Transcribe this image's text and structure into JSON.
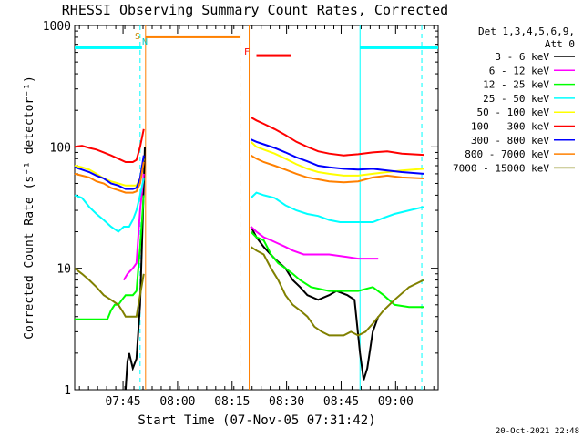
{
  "chart_data": {
    "type": "line",
    "title": "RHESSI Observing Summary Count Rates, Corrected",
    "xlabel": "Start Time (07-Nov-05 07:31:42)",
    "ylabel": "Corrected Count Rate (s⁻¹ detector⁻¹)",
    "yscale": "log",
    "ylim": [
      1,
      1000
    ],
    "xlim": [
      0,
      100
    ],
    "x_ticks": [
      {
        "x": 13.3,
        "label": "07:45"
      },
      {
        "x": 28.3,
        "label": "08:00"
      },
      {
        "x": 43.3,
        "label": "08:15"
      },
      {
        "x": 58.3,
        "label": "08:30"
      },
      {
        "x": 73.3,
        "label": "08:45"
      },
      {
        "x": 88.3,
        "label": "09:00"
      }
    ],
    "y_ticks": [
      {
        "y": 1,
        "label": "1"
      },
      {
        "y": 10,
        "label": "10"
      },
      {
        "y": 100,
        "label": "100"
      },
      {
        "y": 1000,
        "label": "1000"
      }
    ],
    "legend_header": [
      "Det 1,3,4,5,6,9,",
      "Att 0"
    ],
    "legend_position": "top-right outside plot",
    "footer_date": "20-Oct-2021 22:48",
    "annotations": [
      {
        "label": "S",
        "color": "#cc8800"
      },
      {
        "label": "N",
        "color": "#00cccc"
      },
      {
        "label": "F",
        "color": "#ff0000"
      }
    ],
    "bars": [
      {
        "name": "night",
        "color": "#00ffff",
        "segments": [
          [
            0,
            18.5
          ],
          [
            78.5,
            100
          ]
        ],
        "y": 650
      },
      {
        "name": "saa",
        "color": "#ff8000",
        "segments": [
          [
            19.5,
            45.5
          ]
        ],
        "y": 800
      },
      {
        "name": "flare",
        "color": "#ff0000",
        "segments": [
          [
            50,
            59.5
          ]
        ],
        "y": 560
      }
    ],
    "vlines": [
      {
        "x": 18.0,
        "color": "#00ffff",
        "style": "dashed"
      },
      {
        "x": 19.5,
        "color": "#ff8000",
        "style": "solid"
      },
      {
        "x": 45.5,
        "color": "#ff8000",
        "style": "dashed"
      },
      {
        "x": 48.0,
        "color": "#ff8000",
        "style": "solid"
      },
      {
        "x": 78.5,
        "color": "#00ffff",
        "style": "solid"
      },
      {
        "x": 95.5,
        "color": "#00ffff",
        "style": "dashed"
      }
    ],
    "gaps": [
      [
        19.5,
        48.0
      ]
    ],
    "series": [
      {
        "name": "3 - 6 keV",
        "color": "#000000",
        "points": [
          [
            14,
            1
          ],
          [
            14.5,
            1.7
          ],
          [
            15,
            2
          ],
          [
            16,
            1.5
          ],
          [
            17,
            1.8
          ],
          [
            18,
            5
          ],
          [
            18.8,
            30
          ],
          [
            19.3,
            100
          ],
          [
            48.5,
            22
          ],
          [
            50,
            18
          ],
          [
            52,
            15
          ],
          [
            55,
            12
          ],
          [
            58,
            10
          ],
          [
            60,
            8
          ],
          [
            62,
            7
          ],
          [
            64,
            6
          ],
          [
            67,
            5.5
          ],
          [
            70,
            6
          ],
          [
            72,
            6.5
          ],
          [
            75,
            6
          ],
          [
            77,
            5.5
          ],
          [
            78.5,
            2
          ],
          [
            79.5,
            1.2
          ],
          [
            80.5,
            1.5
          ],
          [
            82,
            3
          ],
          [
            83.5,
            4
          ]
        ]
      },
      {
        "name": "6 - 12 keV",
        "color": "#ff00ff",
        "points": [
          [
            13.5,
            8
          ],
          [
            14.5,
            9
          ],
          [
            16,
            10
          ],
          [
            17,
            11
          ],
          [
            18,
            30
          ],
          [
            19,
            60
          ],
          [
            48.5,
            22
          ],
          [
            50,
            20
          ],
          [
            52,
            18
          ],
          [
            54,
            17
          ],
          [
            56,
            16
          ],
          [
            58,
            15
          ],
          [
            60,
            14
          ],
          [
            63,
            13
          ],
          [
            66,
            13
          ],
          [
            70,
            13
          ],
          [
            74,
            12.5
          ],
          [
            78,
            12
          ],
          [
            82,
            12
          ],
          [
            83.5,
            12
          ]
        ]
      },
      {
        "name": "12 - 25 keV",
        "color": "#00ff00",
        "points": [
          [
            0,
            3.8
          ],
          [
            5,
            3.8
          ],
          [
            9,
            3.8
          ],
          [
            10,
            4.5
          ],
          [
            11,
            5
          ],
          [
            12,
            5
          ],
          [
            13,
            5.5
          ],
          [
            14,
            6
          ],
          [
            15,
            6
          ],
          [
            16,
            6
          ],
          [
            17,
            6.5
          ],
          [
            18,
            15
          ],
          [
            19,
            40
          ],
          [
            48.5,
            20
          ],
          [
            50,
            18
          ],
          [
            52,
            17
          ],
          [
            54,
            13
          ],
          [
            56,
            11
          ],
          [
            58,
            10
          ],
          [
            60,
            9
          ],
          [
            62,
            8
          ],
          [
            65,
            7
          ],
          [
            70,
            6.5
          ],
          [
            75,
            6.5
          ],
          [
            78,
            6.5
          ],
          [
            82,
            7
          ],
          [
            85,
            6
          ],
          [
            88,
            5
          ],
          [
            92,
            4.8
          ],
          [
            96,
            4.8
          ]
        ]
      },
      {
        "name": "25 - 50 keV",
        "color": "#00ffff",
        "points": [
          [
            0,
            40
          ],
          [
            2,
            38
          ],
          [
            4,
            32
          ],
          [
            6,
            28
          ],
          [
            8,
            25
          ],
          [
            10,
            22
          ],
          [
            12,
            20
          ],
          [
            13.5,
            22
          ],
          [
            15,
            22
          ],
          [
            16,
            25
          ],
          [
            17,
            30
          ],
          [
            18,
            40
          ],
          [
            19,
            55
          ],
          [
            48.5,
            38
          ],
          [
            50,
            42
          ],
          [
            52,
            40
          ],
          [
            55,
            38
          ],
          [
            58,
            33
          ],
          [
            61,
            30
          ],
          [
            64,
            28
          ],
          [
            67,
            27
          ],
          [
            70,
            25
          ],
          [
            73,
            24
          ],
          [
            76,
            24
          ],
          [
            79,
            24
          ],
          [
            82,
            24
          ],
          [
            85,
            26
          ],
          [
            88,
            28
          ],
          [
            92,
            30
          ],
          [
            96,
            32
          ]
        ]
      },
      {
        "name": "50 - 100 keV",
        "color": "#ffff00",
        "points": [
          [
            0,
            70
          ],
          [
            2,
            68
          ],
          [
            4,
            65
          ],
          [
            6,
            60
          ],
          [
            8,
            55
          ],
          [
            10,
            52
          ],
          [
            12,
            50
          ],
          [
            14,
            48
          ],
          [
            16,
            48
          ],
          [
            17,
            48
          ],
          [
            18,
            55
          ],
          [
            19,
            80
          ],
          [
            48.5,
            110
          ],
          [
            50,
            100
          ],
          [
            52,
            95
          ],
          [
            55,
            88
          ],
          [
            58,
            80
          ],
          [
            61,
            72
          ],
          [
            64,
            66
          ],
          [
            67,
            62
          ],
          [
            70,
            60
          ],
          [
            74,
            58
          ],
          [
            78,
            58
          ],
          [
            82,
            60
          ],
          [
            86,
            62
          ],
          [
            90,
            64
          ],
          [
            96,
            66
          ]
        ]
      },
      {
        "name": "100 - 300 keV",
        "color": "#ff0000",
        "points": [
          [
            0,
            100
          ],
          [
            2,
            102
          ],
          [
            4,
            98
          ],
          [
            6,
            95
          ],
          [
            8,
            90
          ],
          [
            10,
            85
          ],
          [
            12,
            80
          ],
          [
            14,
            75
          ],
          [
            16,
            75
          ],
          [
            17,
            78
          ],
          [
            18,
            100
          ],
          [
            19,
            140
          ],
          [
            48.5,
            175
          ],
          [
            50,
            165
          ],
          [
            52,
            155
          ],
          [
            55,
            140
          ],
          [
            58,
            125
          ],
          [
            61,
            110
          ],
          [
            64,
            100
          ],
          [
            67,
            92
          ],
          [
            70,
            88
          ],
          [
            74,
            85
          ],
          [
            78,
            87
          ],
          [
            82,
            90
          ],
          [
            86,
            92
          ],
          [
            90,
            88
          ],
          [
            96,
            86
          ]
        ]
      },
      {
        "name": "300 - 800 keV",
        "color": "#0000ff",
        "points": [
          [
            0,
            68
          ],
          [
            2,
            65
          ],
          [
            4,
            62
          ],
          [
            6,
            58
          ],
          [
            8,
            55
          ],
          [
            10,
            50
          ],
          [
            12,
            48
          ],
          [
            14,
            45
          ],
          [
            16,
            45
          ],
          [
            17,
            46
          ],
          [
            18,
            55
          ],
          [
            19,
            85
          ],
          [
            48.5,
            115
          ],
          [
            50,
            110
          ],
          [
            52,
            105
          ],
          [
            55,
            98
          ],
          [
            58,
            90
          ],
          [
            61,
            82
          ],
          [
            64,
            76
          ],
          [
            67,
            70
          ],
          [
            70,
            68
          ],
          [
            74,
            66
          ],
          [
            78,
            65
          ],
          [
            82,
            66
          ],
          [
            86,
            64
          ],
          [
            90,
            62
          ],
          [
            96,
            60
          ]
        ]
      },
      {
        "name": "800 - 7000 keV",
        "color": "#ff8000",
        "points": [
          [
            0,
            60
          ],
          [
            2,
            58
          ],
          [
            4,
            56
          ],
          [
            6,
            52
          ],
          [
            8,
            50
          ],
          [
            10,
            46
          ],
          [
            12,
            44
          ],
          [
            14,
            42
          ],
          [
            16,
            42
          ],
          [
            17,
            43
          ],
          [
            18,
            50
          ],
          [
            19,
            75
          ],
          [
            48.5,
            85
          ],
          [
            50,
            80
          ],
          [
            52,
            75
          ],
          [
            55,
            70
          ],
          [
            58,
            65
          ],
          [
            61,
            60
          ],
          [
            64,
            56
          ],
          [
            67,
            54
          ],
          [
            70,
            52
          ],
          [
            74,
            51
          ],
          [
            78,
            52
          ],
          [
            82,
            56
          ],
          [
            86,
            58
          ],
          [
            90,
            56
          ],
          [
            96,
            55
          ]
        ]
      },
      {
        "name": "7000 - 15000 keV",
        "color": "#808000",
        "points": [
          [
            0,
            10
          ],
          [
            2,
            9
          ],
          [
            4,
            8
          ],
          [
            6,
            7
          ],
          [
            8,
            6
          ],
          [
            10,
            5.5
          ],
          [
            12,
            5
          ],
          [
            13,
            4.5
          ],
          [
            14,
            4
          ],
          [
            15,
            4
          ],
          [
            16,
            4
          ],
          [
            17,
            4
          ],
          [
            18,
            6
          ],
          [
            19,
            9
          ],
          [
            48.5,
            15
          ],
          [
            50,
            14
          ],
          [
            52,
            13
          ],
          [
            54,
            10
          ],
          [
            56,
            8
          ],
          [
            58,
            6
          ],
          [
            60,
            5
          ],
          [
            62,
            4.5
          ],
          [
            64,
            4
          ],
          [
            66,
            3.3
          ],
          [
            68,
            3
          ],
          [
            70,
            2.8
          ],
          [
            72,
            2.8
          ],
          [
            74,
            2.8
          ],
          [
            76,
            3
          ],
          [
            78,
            2.8
          ],
          [
            80,
            3
          ],
          [
            82,
            3.5
          ],
          [
            85,
            4.5
          ],
          [
            88,
            5.5
          ],
          [
            92,
            7
          ],
          [
            96,
            8
          ]
        ]
      }
    ]
  }
}
